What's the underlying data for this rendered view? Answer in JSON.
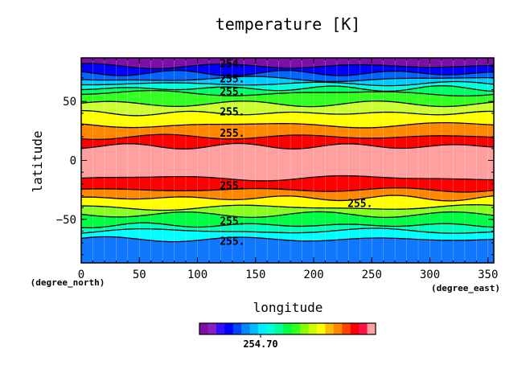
{
  "chart_data": {
    "type": "heatmap",
    "title": "temperature [K]",
    "xlabel": "longitude",
    "ylabel": "latitude",
    "x_unit": "(degree_east)",
    "y_unit": "(degree_north)",
    "xlim": [
      0,
      355
    ],
    "ylim": [
      -87,
      87
    ],
    "x_ticks": [
      0,
      50,
      100,
      150,
      200,
      250,
      300,
      350
    ],
    "y_ticks": [
      -50,
      0,
      50
    ],
    "contour_labels": [
      {
        "text": "254.",
        "lon": 130,
        "lat": 82
      },
      {
        "text": "255.",
        "lon": 130,
        "lat": 69
      },
      {
        "text": "255.",
        "lon": 130,
        "lat": 58
      },
      {
        "text": "255.",
        "lon": 130,
        "lat": 41
      },
      {
        "text": "255.",
        "lon": 130,
        "lat": 23
      },
      {
        "text": "255.",
        "lon": 130,
        "lat": -22
      },
      {
        "text": "255.",
        "lon": 240,
        "lat": -37
      },
      {
        "text": "255.",
        "lon": 130,
        "lat": -52
      },
      {
        "text": "255.",
        "lon": 130,
        "lat": -69
      }
    ],
    "colorbar_label": "254.70",
    "colors": [
      "#7b0fa8",
      "#8a1fc0",
      "#3010ff",
      "#0000ff",
      "#0044ff",
      "#0088ff",
      "#00bbff",
      "#00eeff",
      "#00ffdd",
      "#00ff99",
      "#00ff44",
      "#33ff22",
      "#88ff00",
      "#ccff00",
      "#ffff00",
      "#ffbb00",
      "#ff8800",
      "#ff4400",
      "#ff0000",
      "#ff1144",
      "#ffa0a0"
    ],
    "bands": [
      {
        "lat_min": 80,
        "lat_max": 87,
        "color": "#7b0fa8"
      },
      {
        "lat_min": 74,
        "lat_max": 80,
        "color": "#0000ff"
      },
      {
        "lat_min": 69,
        "lat_max": 74,
        "color": "#0066ff"
      },
      {
        "lat_min": 65,
        "lat_max": 69,
        "color": "#00ccff"
      },
      {
        "lat_min": 61,
        "lat_max": 65,
        "color": "#00ffdd"
      },
      {
        "lat_min": 57,
        "lat_max": 61,
        "color": "#00ff66"
      },
      {
        "lat_min": 48,
        "lat_max": 57,
        "color": "#33ff22"
      },
      {
        "lat_min": 40,
        "lat_max": 48,
        "color": "#ccff33"
      },
      {
        "lat_min": 30,
        "lat_max": 40,
        "color": "#ffff00"
      },
      {
        "lat_min": 20,
        "lat_max": 30,
        "color": "#ff8800"
      },
      {
        "lat_min": 12,
        "lat_max": 20,
        "color": "#ff0000"
      },
      {
        "lat_min": -15,
        "lat_max": 12,
        "color": "#ffa0a0"
      },
      {
        "lat_min": -25,
        "lat_max": -15,
        "color": "#ff0000"
      },
      {
        "lat_min": -32,
        "lat_max": -25,
        "color": "#ff8800"
      },
      {
        "lat_min": -40,
        "lat_max": -32,
        "color": "#ffff00"
      },
      {
        "lat_min": -46,
        "lat_max": -40,
        "color": "#88ff22"
      },
      {
        "lat_min": -55,
        "lat_max": -46,
        "color": "#00ff44"
      },
      {
        "lat_min": -60,
        "lat_max": -55,
        "color": "#00ffbb"
      },
      {
        "lat_min": -67,
        "lat_max": -60,
        "color": "#00ffff"
      },
      {
        "lat_min": -87,
        "lat_max": -67,
        "color": "#1177ff"
      }
    ]
  }
}
